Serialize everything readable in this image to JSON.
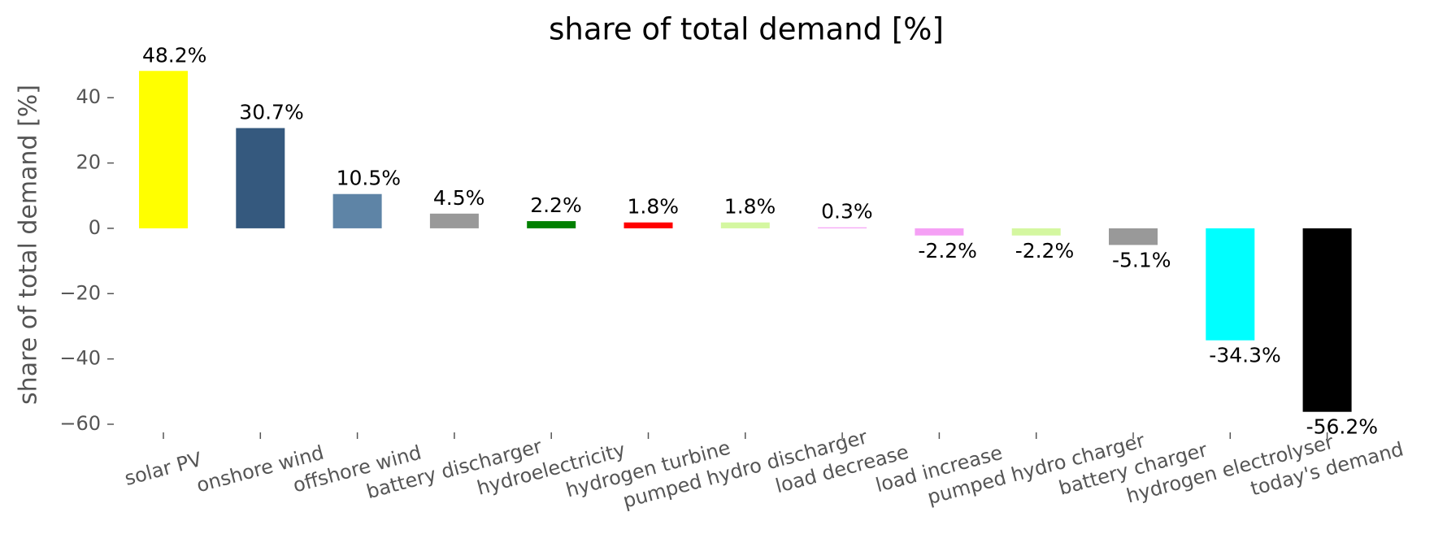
{
  "chart_data": {
    "type": "bar",
    "title": "share of total demand [%]",
    "y_label": "share of total demand [%]",
    "categories": [
      "solar PV",
      "onshore wind",
      "offshore wind",
      "battery discharger",
      "hydroelectricity",
      "hydrogen turbine",
      "pumped hydro discharger",
      "load decrease",
      "load increase",
      "pumped hydro charger",
      "battery charger",
      "hydrogen electrolyser",
      "today's demand"
    ],
    "values": [
      48.2,
      30.7,
      10.5,
      4.5,
      2.2,
      1.8,
      1.8,
      0.3,
      -2.2,
      -2.2,
      -5.1,
      -34.3,
      -56.2
    ],
    "value_labels": [
      "48.2%",
      "30.7%",
      "10.5%",
      "4.5%",
      "2.2%",
      "1.8%",
      "1.8%",
      "0.3%",
      "-2.2%",
      "-2.2%",
      "-5.1%",
      "-34.3%",
      "-56.2%"
    ],
    "colors": [
      "#ffff00",
      "#35597e",
      "#5e84a6",
      "#999999",
      "#008000",
      "#ff0000",
      "#d4f7a0",
      "#f5a0f5",
      "#f5a0f5",
      "#d4f7a0",
      "#999999",
      "#00ffff",
      "#000000"
    ],
    "ylim": [
      -62,
      52
    ],
    "yticks": [
      {
        "value": -60,
        "label": "−60"
      },
      {
        "value": -40,
        "label": "−40"
      },
      {
        "value": -20,
        "label": "−20"
      },
      0,
      20,
      40
    ],
    "grid": false
  }
}
